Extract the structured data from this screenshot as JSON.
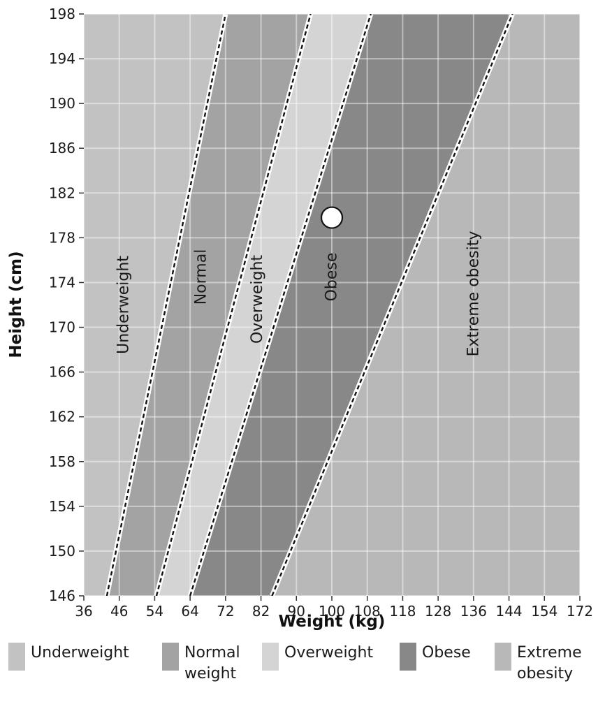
{
  "chart_data": {
    "type": "area",
    "title": "",
    "xlabel": "Weight (kg)",
    "ylabel": "Height (cm)",
    "x_ticks": [
      "36",
      "46",
      "54",
      "64",
      "72",
      "82",
      "90",
      "100",
      "108",
      "118",
      "128",
      "136",
      "144",
      "154",
      "172"
    ],
    "y_ticks": [
      146,
      150,
      154,
      158,
      162,
      166,
      170,
      174,
      178,
      182,
      186,
      190,
      194,
      198
    ],
    "ylim": [
      146,
      198
    ],
    "grid": true,
    "boundaries": [
      {
        "between": [
          "Underweight",
          "Normal"
        ],
        "points": [
          [
            42.5,
            146
          ],
          [
            72,
            198
          ]
        ]
      },
      {
        "between": [
          "Normal",
          "Overweight"
        ],
        "points": [
          [
            54.5,
            146
          ],
          [
            94,
            198
          ]
        ]
      },
      {
        "between": [
          "Overweight",
          "Obese"
        ],
        "points": [
          [
            64,
            146
          ],
          [
            109,
            198
          ]
        ]
      },
      {
        "between": [
          "Obese",
          "Extreme obesity"
        ],
        "points": [
          [
            84.5,
            146
          ],
          [
            145,
            198
          ]
        ]
      }
    ],
    "regions": [
      {
        "name": "Underweight",
        "label": "Underweight",
        "color": "#c2c2c2",
        "label_at": [
          47,
          172
        ]
      },
      {
        "name": "Normal",
        "label": "Normal",
        "color": "#a3a3a3",
        "label_at": [
          66.5,
          174.5
        ]
      },
      {
        "name": "Overweight",
        "label": "Overweight",
        "color": "#d4d4d4",
        "label_at": [
          81,
          172.5
        ]
      },
      {
        "name": "Obese",
        "label": "Obese",
        "color": "#888888",
        "label_at": [
          100,
          174.5
        ]
      },
      {
        "name": "Extreme obesity",
        "label": "Extreme obesity",
        "color": "#b8b8b8",
        "label_at": [
          136,
          173
        ]
      }
    ],
    "points": [
      {
        "x": 100,
        "y": 179.8
      }
    ],
    "legend": {
      "position": "bottom",
      "items": [
        {
          "lines": [
            "Underweight"
          ],
          "color": "#c2c2c2"
        },
        {
          "lines": [
            "Normal",
            "weight"
          ],
          "color": "#a3a3a3"
        },
        {
          "lines": [
            "Overweight"
          ],
          "color": "#d4d4d4"
        },
        {
          "lines": [
            "Obese"
          ],
          "color": "#888888"
        },
        {
          "lines": [
            "Extreme",
            "obesity"
          ],
          "color": "#b8b8b8"
        }
      ]
    }
  }
}
